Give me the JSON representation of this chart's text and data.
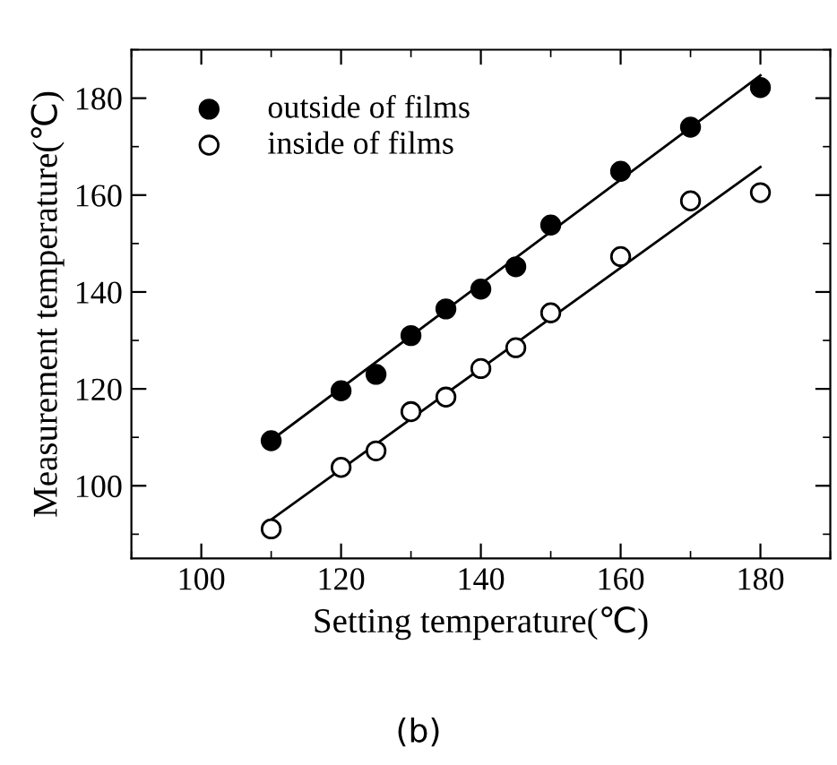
{
  "chart_data": {
    "type": "scatter",
    "xlabel": "Setting temperature(℃)",
    "ylabel": "Measurement temperature(℃)",
    "xlim": [
      90,
      190
    ],
    "ylim": [
      85,
      190
    ],
    "xticks": [
      100,
      120,
      140,
      160,
      180
    ],
    "yticks": [
      100,
      120,
      140,
      160,
      180
    ],
    "legend": "top left",
    "marker": "circle",
    "grid": false,
    "annotations": [
      "(b)"
    ],
    "series": [
      {
        "name": "outside of films",
        "color": "#000000",
        "x": [
          110,
          120,
          125,
          130,
          135,
          140,
          145,
          150,
          160,
          170,
          180
        ],
        "values": [
          109.3,
          119.6,
          123,
          131,
          136.5,
          140.6,
          145.2,
          153.8,
          164.9,
          174,
          182.2
        ]
      },
      {
        "name": "inside of films",
        "color": "#ffffff",
        "x": [
          110,
          120,
          125,
          130,
          135,
          140,
          145,
          150,
          160,
          170,
          180
        ],
        "values": [
          91.1,
          103.8,
          107.2,
          115.3,
          118.3,
          124.2,
          128.5,
          135.7,
          147.3,
          158.8,
          160.5
        ]
      },
      {
        "type": "line",
        "marker": "none",
        "color": "#000000",
        "x": [
          110,
          180
        ],
        "values": [
          109.4,
          184.7
        ]
      },
      {
        "type": "line",
        "marker": "none",
        "color": "#000000",
        "x": [
          110,
          180
        ],
        "values": [
          93,
          165.8
        ]
      }
    ]
  }
}
